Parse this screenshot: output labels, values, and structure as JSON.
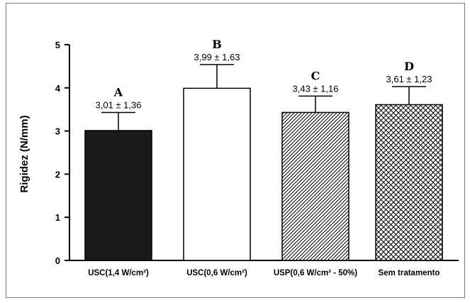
{
  "chart_data": {
    "type": "bar",
    "ylabel": "Rigidez (N/mm)",
    "xlabel": "",
    "title": "",
    "ylim": [
      0,
      5
    ],
    "yticks": [
      0,
      1,
      2,
      3,
      4,
      5
    ],
    "grid": false,
    "categories": [
      "USC(1,4 W/cm²)",
      "USC(0,6 W/cm²)",
      "USP(0,6 W/cm² - 50%)",
      "Sem tratamento"
    ],
    "values": [
      3.01,
      3.99,
      3.43,
      3.61
    ],
    "errors": [
      0.42,
      0.55,
      0.38,
      0.42
    ],
    "letters": [
      "A",
      "B",
      "C",
      "D"
    ],
    "value_labels": [
      "3,01 ± 1,36",
      "3,99 ± 1,63",
      "3,43 ± 1,16",
      "3,61 ± 1,23"
    ],
    "fills": [
      "solid-black",
      "white",
      "diagonal-hatch",
      "cross-hatch"
    ],
    "colors": {
      "bar_dark": "#1a1a1a",
      "stroke": "#000000",
      "background": "#ffffff",
      "frame": "#7a7a7a"
    }
  }
}
